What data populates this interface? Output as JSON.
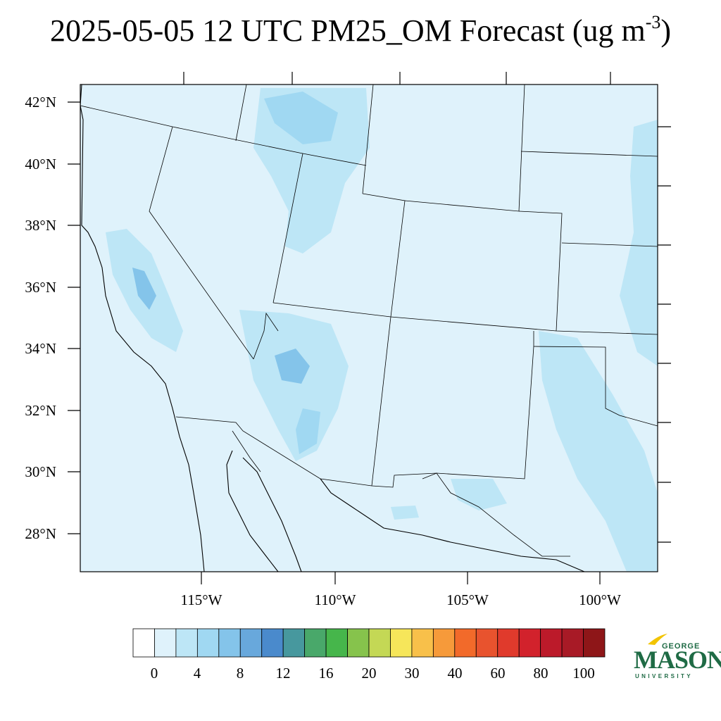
{
  "title": {
    "text": "2025-05-05 12 UTC PM25_OM Forecast (ug m",
    "superscript": "-3",
    "suffix": ")"
  },
  "map": {
    "lat_labels": [
      "42°N",
      "40°N",
      "38°N",
      "36°N",
      "34°N",
      "32°N",
      "30°N",
      "28°N"
    ],
    "lon_labels": [
      "115°W",
      "110°W",
      "105°W",
      "100°W"
    ],
    "background_color": "#dff2fb",
    "border_color": "#000000"
  },
  "colorbar": {
    "labels": [
      "0",
      "4",
      "8",
      "12",
      "16",
      "20",
      "30",
      "40",
      "60",
      "80",
      "100"
    ],
    "colors": [
      "#ffffff",
      "#dff2fb",
      "#bde6f6",
      "#a0d8f2",
      "#84c4ea",
      "#68a8dc",
      "#4a8acc",
      "#47989e",
      "#49a86a",
      "#46b64b",
      "#86c34c",
      "#c4d855",
      "#f6e65a",
      "#f8c04a",
      "#f69a3a",
      "#f26a2a",
      "#e8532e",
      "#e03a2c",
      "#d2222c",
      "#bc1a2a",
      "#a81a26",
      "#8e1618"
    ]
  },
  "logo": {
    "george": "GEORGE",
    "mason": "MASON",
    "university": "UNIVERSITY",
    "color": "#1f6b45",
    "accent_color": "#f2c400"
  }
}
